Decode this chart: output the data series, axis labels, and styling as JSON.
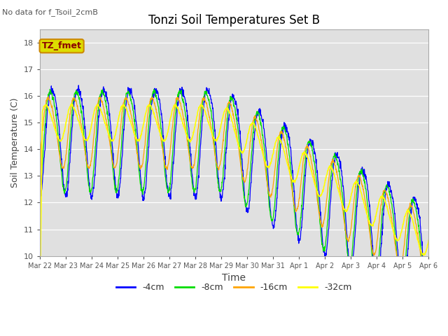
{
  "title": "Tonzi Soil Temperatures Set B",
  "xlabel": "Time",
  "ylabel": "Soil Temperature (C)",
  "annotation_text": "No data for f_Tsoil_2cmB",
  "textbox_label": "TZ_fmet",
  "ylim": [
    10.0,
    18.5
  ],
  "yticks": [
    10.0,
    11.0,
    12.0,
    13.0,
    14.0,
    15.0,
    16.0,
    17.0,
    18.0
  ],
  "line_colors": [
    "blue",
    "#00dd00",
    "orange",
    "yellow"
  ],
  "line_labels": [
    "-4cm",
    "-8cm",
    "-16cm",
    "-32cm"
  ],
  "xtick_labels": [
    "Mar 22",
    "Mar 23",
    "Mar 24",
    "Mar 25",
    "Mar 26",
    "Mar 27",
    "Mar 28",
    "Mar 29",
    "Mar 30",
    "Mar 31",
    "Apr 1",
    "Apr 2",
    "Apr 3",
    "Apr 4",
    "Apr 5",
    "Apr 6"
  ],
  "bg_color": "#e0e0e0"
}
